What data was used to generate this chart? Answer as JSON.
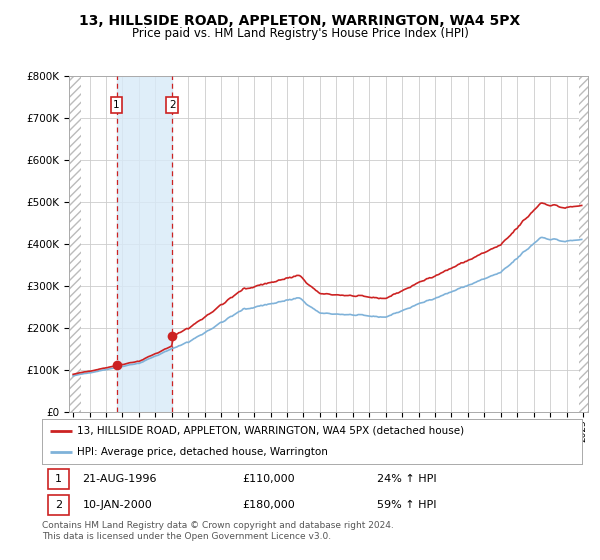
{
  "title": "13, HILLSIDE ROAD, APPLETON, WARRINGTON, WA4 5PX",
  "subtitle": "Price paid vs. HM Land Registry's House Price Index (HPI)",
  "ylim": [
    0,
    800000
  ],
  "yticks": [
    0,
    100000,
    200000,
    300000,
    400000,
    500000,
    600000,
    700000,
    800000
  ],
  "ytick_labels": [
    "£0",
    "£100K",
    "£200K",
    "£300K",
    "£400K",
    "£500K",
    "£600K",
    "£700K",
    "£800K"
  ],
  "sale1_date": 1996.64,
  "sale1_price": 110000,
  "sale2_date": 2000.03,
  "sale2_price": 180000,
  "hpi_line_color": "#7fb2d9",
  "price_line_color": "#cc2222",
  "sale_marker_color": "#cc2222",
  "vline_color": "#cc2222",
  "grid_color": "#cccccc",
  "bg_color": "#ffffff",
  "legend_label_price": "13, HILLSIDE ROAD, APPLETON, WARRINGTON, WA4 5PX (detached house)",
  "legend_label_hpi": "HPI: Average price, detached house, Warrington",
  "note1_date": "21-AUG-1996",
  "note1_price": "£110,000",
  "note1_hpi": "24% ↑ HPI",
  "note2_date": "10-JAN-2000",
  "note2_price": "£180,000",
  "note2_hpi": "59% ↑ HPI",
  "footer": "Contains HM Land Registry data © Crown copyright and database right 2024.\nThis data is licensed under the Open Government Licence v3.0."
}
